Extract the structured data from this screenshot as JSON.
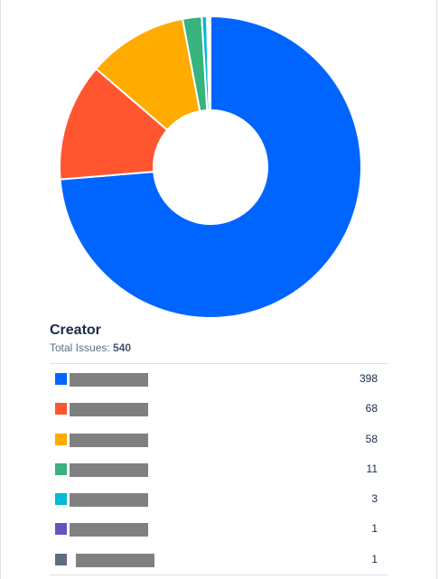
{
  "header": {
    "title": "Creator",
    "total_label": "Total Issues:",
    "total_value": "540"
  },
  "chart_data": {
    "type": "pie",
    "variant": "donut",
    "total": 540,
    "values": [
      398,
      68,
      58,
      11,
      3,
      1,
      1
    ],
    "colors": [
      "#0065ff",
      "#ff5630",
      "#ffab00",
      "#36b37e",
      "#00b8d9",
      "#6554c0",
      "#5e6c84"
    ],
    "legend_placement": "bottom"
  },
  "legend": [
    {
      "color": "#0065ff",
      "count": "398"
    },
    {
      "color": "#ff5630",
      "count": "68"
    },
    {
      "color": "#ffab00",
      "count": "58"
    },
    {
      "color": "#36b37e",
      "count": "11"
    },
    {
      "color": "#00b8d9",
      "count": "3"
    },
    {
      "color": "#6554c0",
      "count": "1"
    },
    {
      "color": "#5e6c84",
      "count": "1"
    }
  ]
}
